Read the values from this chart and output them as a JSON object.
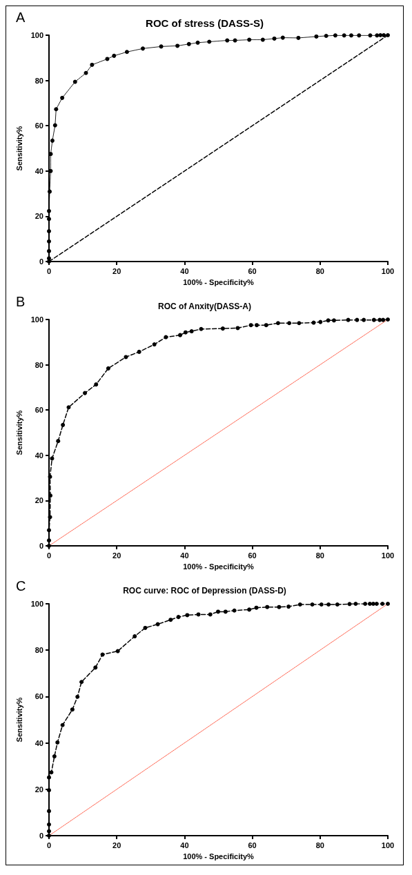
{
  "chart_data": [
    {
      "type": "line",
      "title": "ROC of stress (DASS-S)",
      "xlabel": "100% - Specificity%",
      "ylabel": "Sensitivity%",
      "annotations": [
        "A"
      ],
      "xlim": [
        0,
        100
      ],
      "ylim": [
        0,
        100
      ],
      "xticks": [
        0,
        20,
        40,
        60,
        80,
        100
      ],
      "yticks": [
        0,
        20,
        40,
        60,
        80,
        100
      ],
      "grid": false,
      "series": [
        {
          "color": "#000000",
          "marker": "circle",
          "line_style": "dotted",
          "x": [
            0,
            0,
            0,
            0,
            0,
            0,
            0,
            0.2,
            0.5,
            0.5,
            1,
            1.8,
            2.1,
            3.9,
            7.7,
            10.9,
            12.7,
            17.2,
            19.2,
            23,
            27.7,
            33.1,
            37.9,
            41.3,
            43.9,
            47.3,
            52.6,
            54.9,
            59.1,
            63.1,
            66.5,
            69,
            73.6,
            78.9,
            81.8,
            84.5,
            87.1,
            89.2,
            91.5,
            94.8,
            96.8,
            97.8,
            98.8,
            100
          ],
          "values": [
            0,
            1.4,
            4.6,
            8.9,
            13.4,
            18.8,
            22.3,
            30.9,
            40,
            47.5,
            53.4,
            60.2,
            67.3,
            72.3,
            79.4,
            83.3,
            86.9,
            89.5,
            90.9,
            92.6,
            94.1,
            95,
            95.3,
            96.1,
            96.7,
            97.1,
            97.7,
            97.7,
            98,
            98,
            98.5,
            98.9,
            98.8,
            99.4,
            99.7,
            99.9,
            99.9,
            99.9,
            99.9,
            99.9,
            99.9,
            100,
            100,
            100
          ]
        },
        {
          "color": "#000000",
          "marker": "none",
          "line_style": "dashed",
          "x": [
            0,
            100
          ],
          "values": [
            0,
            100
          ]
        }
      ]
    },
    {
      "type": "line",
      "title": "ROC of Anxity(DASS-A)",
      "xlabel": "100% - Specificity%",
      "ylabel": "Sensitivity%",
      "annotations": [
        "B"
      ],
      "xlim": [
        0,
        100
      ],
      "ylim": [
        0,
        100
      ],
      "xticks": [
        0,
        20,
        40,
        60,
        80,
        100
      ],
      "yticks": [
        0,
        20,
        40,
        60,
        80,
        100
      ],
      "grid": false,
      "series": [
        {
          "color": "#000000",
          "marker": "circle",
          "line_style": "dashed",
          "x": [
            0,
            0,
            0,
            0.3,
            0.4,
            0.3,
            0.9,
            2.7,
            4.1,
            5.8,
            10.6,
            13.9,
            17.5,
            22.7,
            26.6,
            31.1,
            34.5,
            38.7,
            40.3,
            42.1,
            44.9,
            51.3,
            55.7,
            59.6,
            61.3,
            64.1,
            67.6,
            70.9,
            73.8,
            78.1,
            80.1,
            82.4,
            84.1,
            88.3,
            90.9,
            92.9,
            95.9,
            97.6,
            98.6,
            100
          ],
          "values": [
            0,
            2.4,
            6.9,
            12.7,
            22.2,
            30.5,
            38.6,
            46.3,
            53.4,
            61.2,
            67.5,
            71.3,
            78.4,
            83.4,
            85.7,
            89,
            92.2,
            93.1,
            94.3,
            94.8,
            95.8,
            96,
            96.2,
            97.5,
            97.5,
            97.5,
            98.4,
            98.4,
            98.4,
            98.6,
            98.9,
            99.6,
            99.6,
            99.8,
            99.8,
            99.8,
            99.8,
            99.8,
            99.8,
            100
          ]
        },
        {
          "color": "#ff5a45",
          "marker": "none",
          "line_style": "dotted",
          "x": [
            0,
            100
          ],
          "values": [
            0,
            100
          ]
        }
      ]
    },
    {
      "type": "line",
      "title": "ROC curve: ROC of Depression (DASS-D)",
      "xlabel": "100% - Specificity%",
      "ylabel": "Sensitivity%",
      "annotations": [
        "C"
      ],
      "xlim": [
        0,
        100
      ],
      "ylim": [
        0,
        100
      ],
      "xticks": [
        0,
        20,
        40,
        60,
        80,
        100
      ],
      "yticks": [
        0,
        20,
        40,
        60,
        80,
        100
      ],
      "grid": false,
      "series": [
        {
          "color": "#000000",
          "marker": "circle",
          "line_style": "dashed",
          "x": [
            0,
            0,
            0,
            0,
            0,
            0,
            0.7,
            1.6,
            2.5,
            4,
            6.9,
            8.4,
            9.6,
            13.7,
            15.8,
            20.3,
            25.3,
            28.4,
            32.1,
            35.9,
            38.2,
            40.8,
            44.1,
            47.6,
            49.9,
            52.1,
            54.7,
            59.1,
            61.2,
            64.4,
            67.9,
            70.7,
            74.1,
            77.7,
            80.4,
            82.5,
            85.1,
            88.7,
            90.5,
            93.3,
            94.7,
            95.7,
            96.7,
            98.4,
            100
          ],
          "values": [
            0,
            1.9,
            4.8,
            10.6,
            19.6,
            25.1,
            27.3,
            34.2,
            40.2,
            47.7,
            54.4,
            59.9,
            66.3,
            72.5,
            78.1,
            79.6,
            86,
            89.6,
            91.2,
            93.1,
            94.3,
            95.1,
            95.4,
            95.4,
            96.6,
            96.6,
            97.1,
            97.5,
            98.3,
            98.6,
            98.6,
            98.8,
            99.7,
            99.7,
            99.7,
            99.7,
            99.7,
            99.9,
            100,
            100,
            100,
            100,
            100,
            100,
            100
          ]
        },
        {
          "color": "#ff5a45",
          "marker": "none",
          "line_style": "dotted",
          "x": [
            0,
            100
          ],
          "values": [
            0,
            100
          ]
        }
      ]
    }
  ]
}
